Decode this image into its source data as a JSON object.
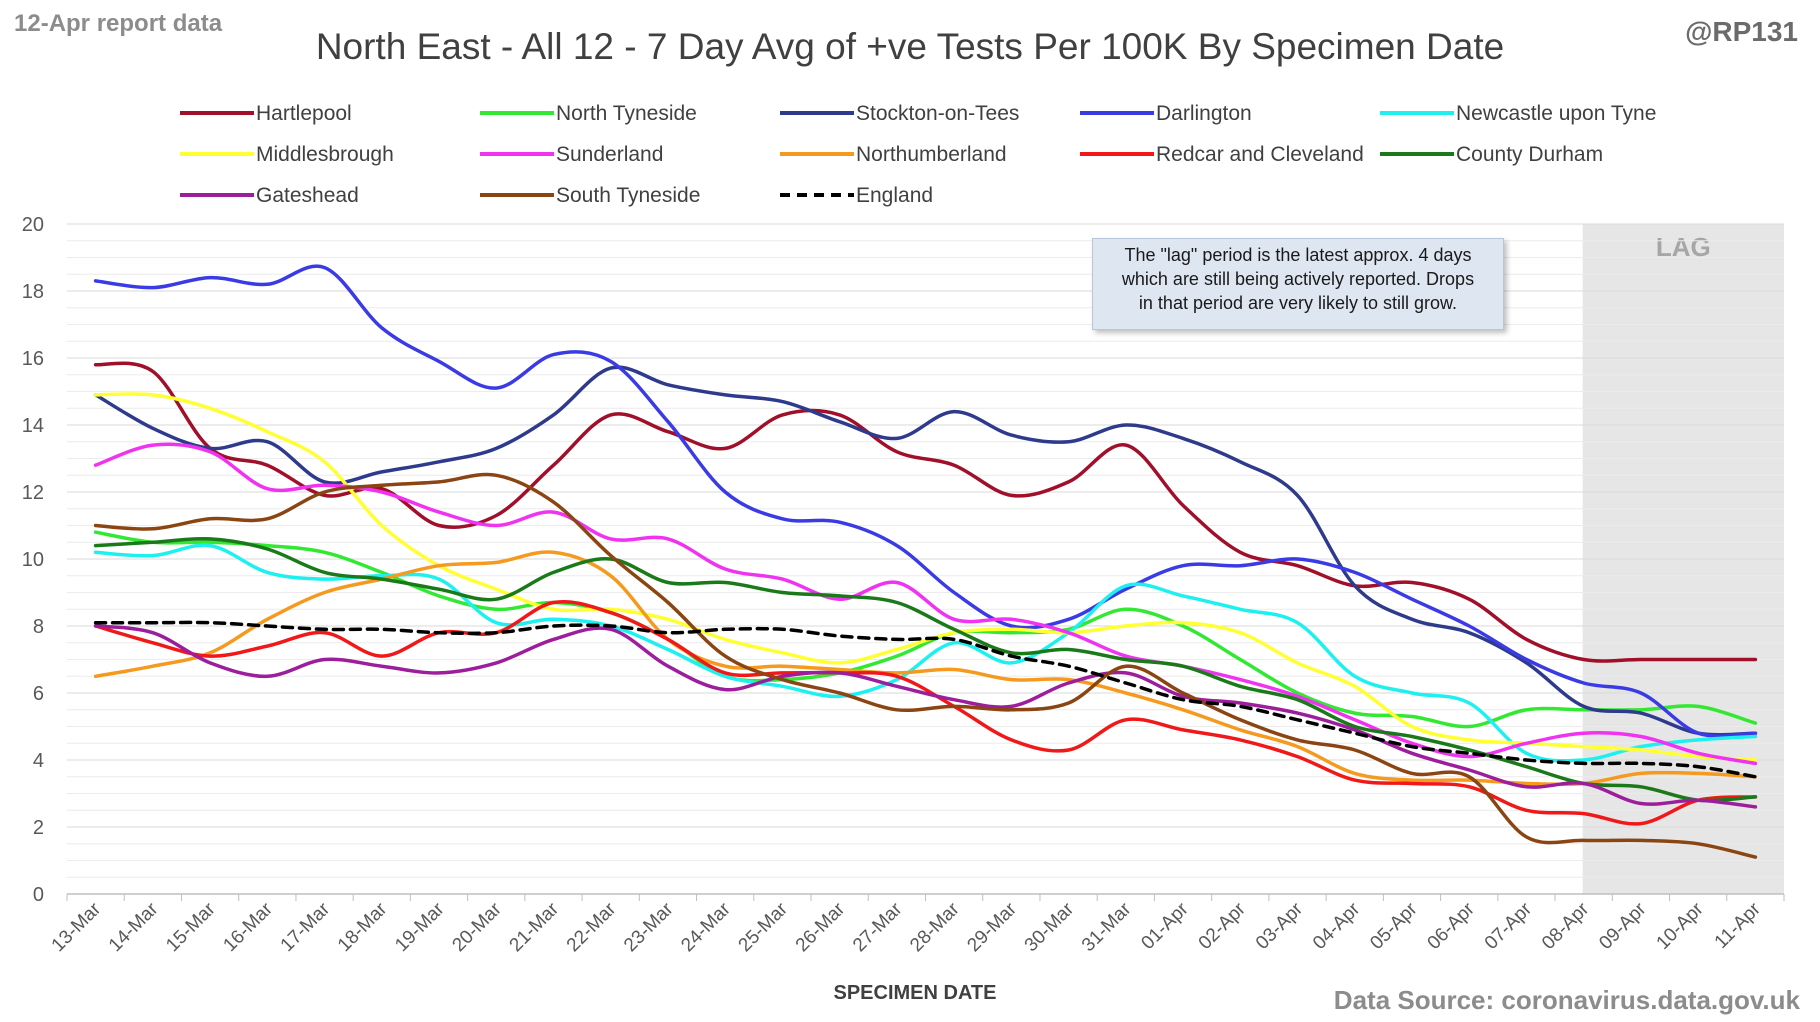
{
  "header": {
    "report_date": "12-Apr report data",
    "title": "North East - All 12 - 7 Day Avg of +ve Tests Per 100K By Specimen Date",
    "handle": "@RP131"
  },
  "footer": {
    "source": "Data Source: coronavirus.data.gov.uk"
  },
  "annotation": {
    "note": "The \"lag\" period is the latest approx. 4 days\nwhich are still being actively reported.  Drops\nin that period are very likely to still grow.",
    "lag_label": "LAG",
    "lag_start": "08-Apr",
    "lag_end": "11-Apr",
    "lag_color": "#e6e6e6"
  },
  "chart_data": {
    "type": "line",
    "title": "North East - All 12 - 7 Day Avg of +ve Tests Per 100K By Specimen Date",
    "xlabel": "SPECIMEN DATE",
    "ylabel": "",
    "ylim": [
      0,
      20
    ],
    "yticks": [
      0,
      2,
      4,
      6,
      8,
      10,
      12,
      14,
      16,
      18,
      20
    ],
    "grid": true,
    "legend_position": "top",
    "categories": [
      "13-Mar",
      "14-Mar",
      "15-Mar",
      "16-Mar",
      "17-Mar",
      "18-Mar",
      "19-Mar",
      "20-Mar",
      "21-Mar",
      "22-Mar",
      "23-Mar",
      "24-Mar",
      "25-Mar",
      "26-Mar",
      "27-Mar",
      "28-Mar",
      "29-Mar",
      "30-Mar",
      "31-Mar",
      "01-Apr",
      "02-Apr",
      "03-Apr",
      "04-Apr",
      "05-Apr",
      "06-Apr",
      "07-Apr",
      "08-Apr",
      "09-Apr",
      "10-Apr",
      "11-Apr"
    ],
    "series": [
      {
        "name": "Hartlepool",
        "color": "#a0102a",
        "dashed": false,
        "values": [
          15.8,
          15.6,
          13.3,
          12.8,
          11.9,
          12.1,
          11.0,
          11.3,
          12.8,
          14.3,
          13.8,
          13.3,
          14.3,
          14.3,
          13.2,
          12.8,
          11.9,
          12.3,
          13.4,
          11.6,
          10.2,
          9.8,
          9.2,
          9.3,
          8.8,
          7.6,
          7.0,
          7.0,
          7.0,
          7.0
        ]
      },
      {
        "name": "North Tyneside",
        "color": "#33e833",
        "dashed": false,
        "values": [
          10.8,
          10.5,
          10.5,
          10.4,
          10.2,
          9.6,
          8.9,
          8.5,
          8.7,
          8.4,
          7.6,
          6.5,
          6.4,
          6.6,
          7.1,
          7.8,
          7.8,
          7.9,
          8.5,
          8.0,
          7.0,
          6.0,
          5.4,
          5.3,
          5.0,
          5.5,
          5.5,
          5.5,
          5.6,
          5.1
        ]
      },
      {
        "name": "Stockton-on-Tees",
        "color": "#2e3a8c",
        "dashed": false,
        "values": [
          14.9,
          13.9,
          13.3,
          13.5,
          12.3,
          12.6,
          12.9,
          13.3,
          14.3,
          15.7,
          15.2,
          14.9,
          14.7,
          14.1,
          13.6,
          14.4,
          13.7,
          13.5,
          14.0,
          13.6,
          12.9,
          11.9,
          9.2,
          8.2,
          7.8,
          6.9,
          5.6,
          5.4,
          4.8,
          4.8
        ]
      },
      {
        "name": "Darlington",
        "color": "#3b3be6",
        "dashed": false,
        "values": [
          18.3,
          18.1,
          18.4,
          18.2,
          18.7,
          16.9,
          15.9,
          15.1,
          16.1,
          15.9,
          14.1,
          12.0,
          11.2,
          11.1,
          10.4,
          9.0,
          8.0,
          8.2,
          9.1,
          9.8,
          9.8,
          10.0,
          9.6,
          8.8,
          8.0,
          7.0,
          6.3,
          6.0,
          4.8,
          4.8
        ]
      },
      {
        "name": "Newcastle upon Tyne",
        "color": "#1ef0f0",
        "dashed": false,
        "values": [
          10.2,
          10.1,
          10.4,
          9.6,
          9.4,
          9.5,
          9.4,
          8.1,
          8.2,
          8.0,
          7.3,
          6.5,
          6.2,
          5.9,
          6.4,
          7.5,
          6.9,
          7.8,
          9.2,
          8.9,
          8.5,
          8.1,
          6.5,
          6.0,
          5.7,
          4.2,
          4.0,
          4.4,
          4.6,
          4.7
        ]
      },
      {
        "name": "Middlesbrough",
        "color": "#ffff33",
        "dashed": false,
        "values": [
          14.9,
          14.9,
          14.5,
          13.8,
          12.9,
          11.0,
          9.8,
          9.1,
          8.5,
          8.5,
          8.2,
          7.6,
          7.2,
          6.9,
          7.3,
          7.8,
          7.9,
          7.8,
          8.0,
          8.1,
          7.8,
          6.9,
          6.2,
          5.0,
          4.6,
          4.5,
          4.4,
          4.3,
          4.1,
          4.0
        ]
      },
      {
        "name": "Sunderland",
        "color": "#f033f0",
        "dashed": false,
        "values": [
          12.8,
          13.4,
          13.2,
          12.1,
          12.2,
          12.0,
          11.4,
          11.0,
          11.4,
          10.6,
          10.6,
          9.7,
          9.4,
          8.8,
          9.3,
          8.2,
          8.2,
          7.8,
          7.1,
          6.8,
          6.4,
          5.9,
          5.2,
          4.5,
          4.1,
          4.5,
          4.8,
          4.7,
          4.2,
          3.9
        ]
      },
      {
        "name": "Northumberland",
        "color": "#f59a1e",
        "dashed": false,
        "values": [
          6.5,
          6.8,
          7.2,
          8.2,
          9.0,
          9.4,
          9.8,
          9.9,
          10.2,
          9.5,
          7.6,
          6.8,
          6.8,
          6.7,
          6.6,
          6.7,
          6.4,
          6.4,
          6.0,
          5.5,
          4.9,
          4.4,
          3.6,
          3.4,
          3.4,
          3.3,
          3.3,
          3.6,
          3.6,
          3.5
        ]
      },
      {
        "name": "Redcar and Cleveland",
        "color": "#f01818",
        "dashed": false,
        "values": [
          8.0,
          7.5,
          7.1,
          7.4,
          7.8,
          7.1,
          7.8,
          7.8,
          8.7,
          8.4,
          7.6,
          6.6,
          6.6,
          6.6,
          6.5,
          5.6,
          4.6,
          4.3,
          5.2,
          4.9,
          4.6,
          4.1,
          3.4,
          3.3,
          3.2,
          2.5,
          2.4,
          2.1,
          2.8,
          2.9
        ]
      },
      {
        "name": "County Durham",
        "color": "#1a7a1a",
        "dashed": false,
        "values": [
          10.4,
          10.5,
          10.6,
          10.3,
          9.6,
          9.4,
          9.1,
          8.8,
          9.6,
          10.0,
          9.3,
          9.3,
          9.0,
          8.9,
          8.7,
          7.9,
          7.2,
          7.3,
          7.0,
          6.8,
          6.2,
          5.8,
          5.0,
          4.7,
          4.3,
          3.8,
          3.3,
          3.2,
          2.8,
          2.9
        ]
      },
      {
        "name": "Gateshead",
        "color": "#9c1e9c",
        "dashed": false,
        "values": [
          8.0,
          7.8,
          6.9,
          6.5,
          7.0,
          6.8,
          6.6,
          6.9,
          7.6,
          7.9,
          6.8,
          6.1,
          6.5,
          6.6,
          6.2,
          5.8,
          5.6,
          6.3,
          6.6,
          5.9,
          5.7,
          5.4,
          4.9,
          4.2,
          3.7,
          3.2,
          3.3,
          2.7,
          2.8,
          2.6
        ]
      },
      {
        "name": "South Tyneside",
        "color": "#8b4513",
        "dashed": false,
        "values": [
          11.0,
          10.9,
          11.2,
          11.2,
          12.0,
          12.2,
          12.3,
          12.5,
          11.7,
          10.1,
          8.7,
          7.1,
          6.4,
          6.0,
          5.5,
          5.6,
          5.5,
          5.7,
          6.8,
          6.0,
          5.2,
          4.6,
          4.3,
          3.6,
          3.5,
          1.7,
          1.6,
          1.6,
          1.5,
          1.1
        ]
      },
      {
        "name": "England",
        "color": "#000000",
        "dashed": true,
        "values": [
          8.1,
          8.1,
          8.1,
          8.0,
          7.9,
          7.9,
          7.8,
          7.8,
          8.0,
          8.0,
          7.8,
          7.9,
          7.9,
          7.7,
          7.6,
          7.6,
          7.1,
          6.8,
          6.3,
          5.8,
          5.6,
          5.2,
          4.8,
          4.4,
          4.2,
          4.0,
          3.9,
          3.9,
          3.8,
          3.5
        ]
      }
    ]
  }
}
